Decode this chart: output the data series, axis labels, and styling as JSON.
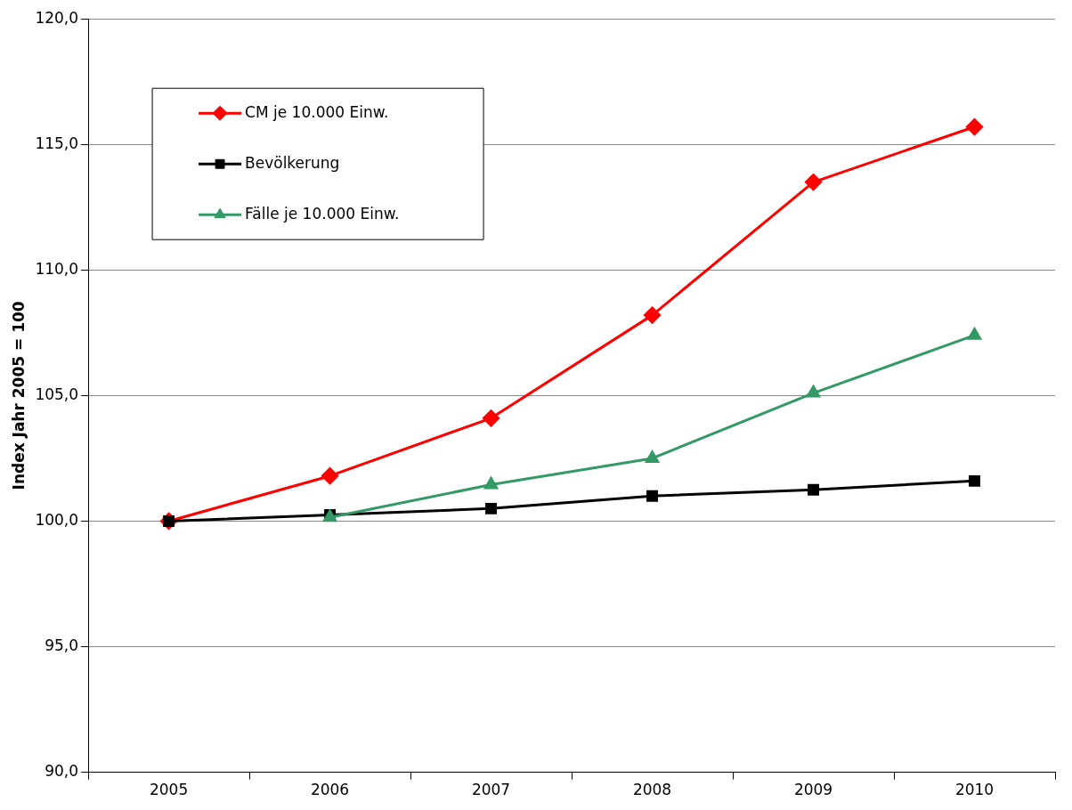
{
  "chart_data": {
    "type": "line",
    "ylabel": "Index Jahr 2005 = 100",
    "categories": [
      "2005",
      "2006",
      "2007",
      "2008",
      "2009",
      "2010"
    ],
    "series": [
      {
        "name": "CM je 10.000 Einw.",
        "color": "#ff0000",
        "marker": "diamond",
        "values": [
          100,
          101.8,
          104.1,
          108.2,
          113.5,
          115.7
        ]
      },
      {
        "name": "Bevölkerung",
        "color": "#000000",
        "marker": "square",
        "values": [
          100,
          100.25,
          100.5,
          101.0,
          101.25,
          101.6
        ]
      },
      {
        "name": "Fälle je 10.000 Einw.",
        "color": "#339966",
        "marker": "triangle",
        "values": [
          null,
          100.15,
          101.45,
          102.5,
          105.1,
          107.4
        ]
      }
    ],
    "ylim": [
      90,
      120
    ],
    "yticks": [
      {
        "value": 90,
        "label": "90,0"
      },
      {
        "value": 95,
        "label": "95,0"
      },
      {
        "value": 100,
        "label": "100,0"
      },
      {
        "value": 105,
        "label": "105,0"
      },
      {
        "value": 110,
        "label": "110,0"
      },
      {
        "value": 115,
        "label": "115,0"
      },
      {
        "value": 120,
        "label": "120,0"
      }
    ],
    "grid": "y",
    "legend": "top left",
    "line_style": "solid"
  }
}
